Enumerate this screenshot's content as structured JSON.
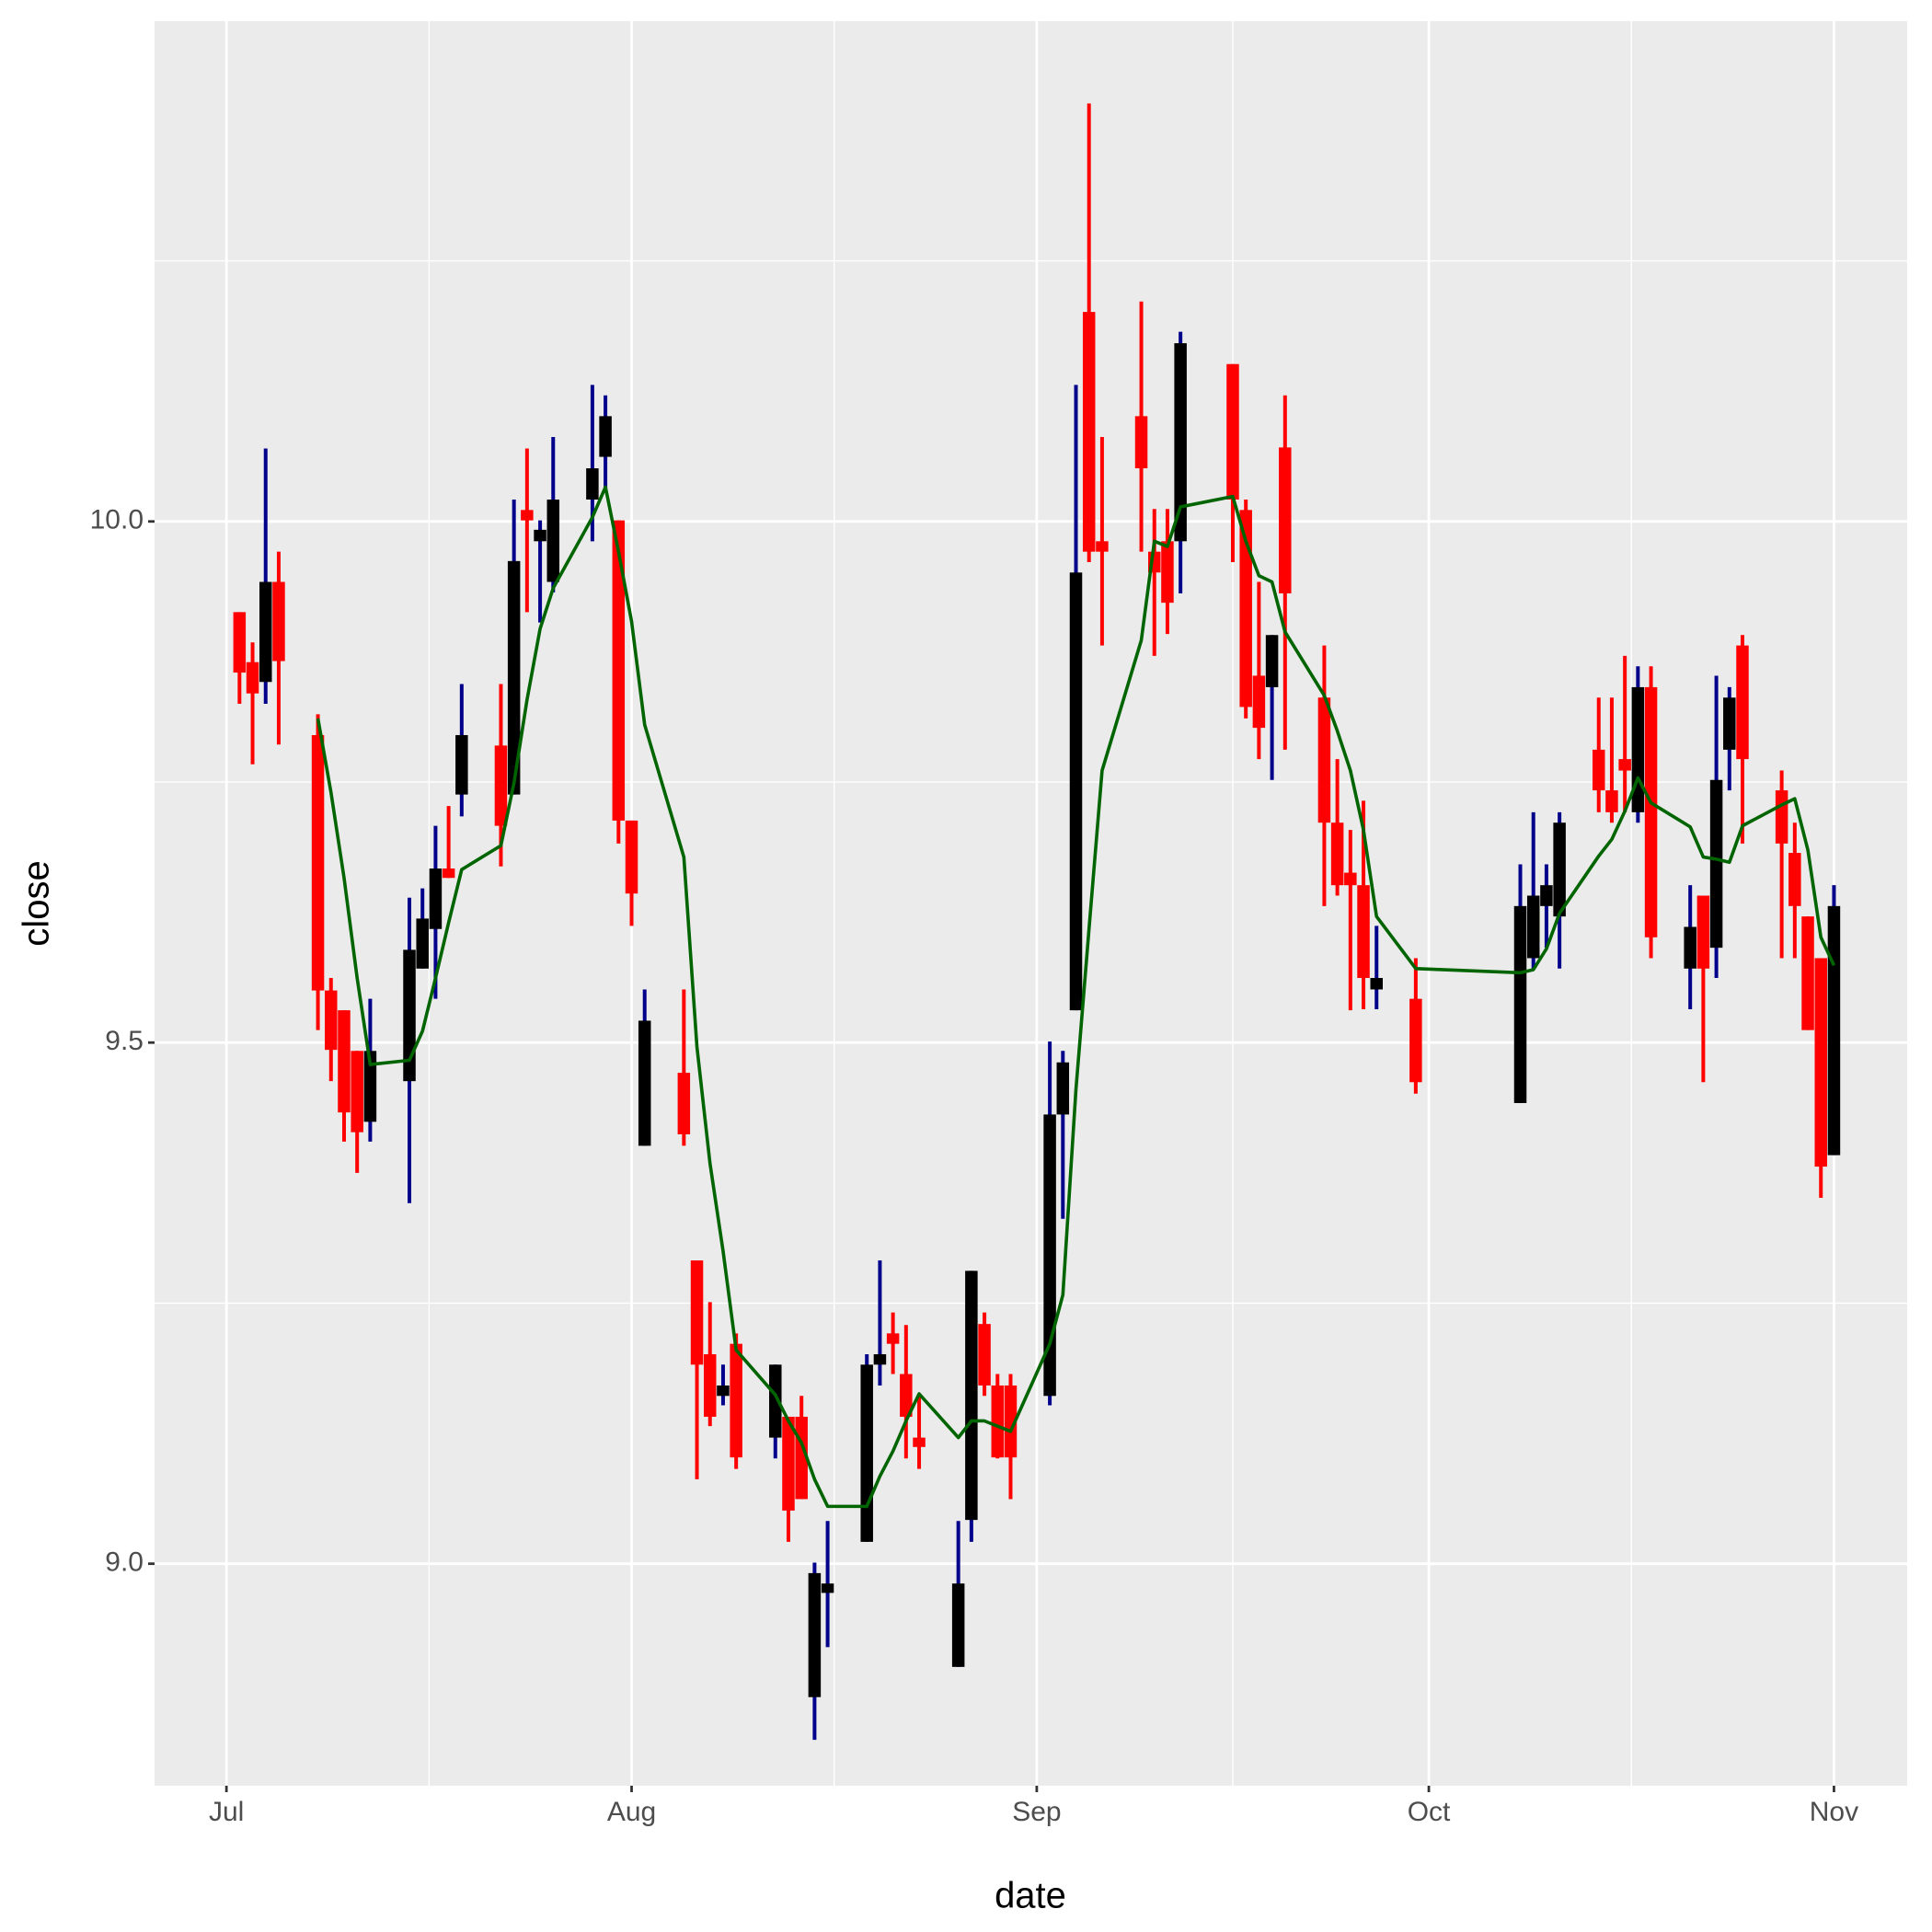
{
  "chart_data": {
    "type": "candlestick",
    "x_label": "date",
    "y_label": "close",
    "x": [
      1,
      2,
      3,
      4,
      7,
      8,
      9,
      10,
      11,
      14,
      15,
      16,
      17,
      18,
      21,
      22,
      23,
      24,
      25,
      28,
      29,
      30,
      31,
      32,
      35,
      36,
      37,
      38,
      39,
      42,
      43,
      44,
      45,
      46,
      49,
      50,
      51,
      52,
      53,
      56,
      57,
      58,
      59,
      60,
      63,
      64,
      65,
      66,
      67,
      70,
      71,
      72,
      73,
      77,
      78,
      79,
      80,
      81,
      84,
      85,
      86,
      87,
      88,
      91,
      99,
      100,
      101,
      102,
      105,
      106,
      107,
      108,
      109,
      112,
      113,
      114,
      115,
      116,
      119,
      120,
      121,
      122,
      123
    ],
    "open": [
      9.913,
      9.865,
      9.846,
      9.942,
      9.795,
      9.55,
      9.531,
      9.492,
      9.424,
      9.463,
      9.571,
      9.609,
      9.667,
      9.738,
      9.785,
      9.738,
      10.011,
      9.981,
      9.942,
      10.021,
      10.062,
      10.001,
      9.713,
      9.401,
      9.471,
      9.291,
      9.201,
      9.161,
      9.211,
      9.121,
      9.141,
      9.141,
      8.872,
      8.972,
      9.021,
      9.191,
      9.221,
      9.182,
      9.121,
      8.901,
      9.042,
      9.23,
      9.171,
      9.171,
      9.161,
      9.431,
      9.531,
      10.201,
      9.981,
      10.101,
      9.971,
      9.981,
      9.981,
      10.151,
      10.011,
      9.852,
      9.841,
      10.071,
      9.831,
      9.711,
      9.663,
      9.651,
      9.551,
      9.542,
      9.442,
      9.581,
      9.631,
      9.621,
      9.781,
      9.742,
      9.772,
      9.721,
      9.841,
      9.571,
      9.641,
      9.591,
      9.781,
      9.881,
      9.742,
      9.682,
      9.621,
      9.581,
      9.392
    ],
    "high": [
      9.913,
      9.884,
      10.07,
      9.971,
      9.815,
      9.562,
      9.531,
      9.492,
      9.542,
      9.639,
      9.648,
      9.708,
      9.727,
      9.844,
      9.844,
      10.021,
      10.07,
      10.001,
      10.081,
      10.131,
      10.121,
      10.001,
      9.713,
      9.551,
      9.551,
      9.291,
      9.251,
      9.191,
      9.221,
      9.191,
      9.141,
      9.161,
      9.001,
      9.041,
      9.201,
      9.291,
      9.241,
      9.229,
      9.161,
      9.041,
      9.281,
      9.241,
      9.182,
      9.182,
      9.501,
      9.492,
      10.131,
      10.401,
      10.081,
      10.211,
      10.012,
      10.012,
      10.182,
      10.151,
      10.021,
      9.942,
      9.891,
      10.121,
      9.881,
      9.772,
      9.704,
      9.732,
      9.612,
      9.581,
      9.671,
      9.721,
      9.671,
      9.721,
      9.831,
      9.831,
      9.871,
      9.861,
      9.861,
      9.651,
      9.641,
      9.852,
      9.841,
      9.891,
      9.761,
      9.711,
      9.621,
      9.581,
      9.651
    ],
    "low": [
      9.825,
      9.767,
      9.825,
      9.786,
      9.512,
      9.463,
      9.405,
      9.375,
      9.405,
      9.346,
      9.571,
      9.542,
      9.658,
      9.717,
      9.669,
      9.738,
      9.913,
      9.903,
      9.932,
      9.981,
      10.032,
      9.691,
      9.612,
      9.401,
      9.401,
      9.081,
      9.132,
      9.152,
      9.091,
      9.101,
      9.021,
      9.062,
      8.831,
      8.92,
      9.021,
      9.171,
      9.182,
      9.101,
      9.091,
      8.901,
      9.021,
      9.161,
      9.101,
      9.062,
      9.152,
      9.331,
      9.531,
      9.961,
      9.881,
      9.971,
      9.871,
      9.892,
      9.931,
      9.961,
      9.811,
      9.772,
      9.752,
      9.781,
      9.631,
      9.641,
      9.531,
      9.532,
      9.532,
      9.451,
      9.442,
      9.571,
      9.591,
      9.571,
      9.721,
      9.711,
      9.721,
      9.711,
      9.581,
      9.532,
      9.462,
      9.562,
      9.742,
      9.691,
      9.581,
      9.581,
      9.512,
      9.351,
      9.392
    ],
    "close": [
      9.855,
      9.835,
      9.942,
      9.866,
      9.55,
      9.493,
      9.433,
      9.414,
      9.492,
      9.589,
      9.619,
      9.667,
      9.658,
      9.795,
      9.708,
      9.962,
      10.001,
      9.992,
      10.021,
      10.051,
      10.101,
      9.713,
      9.643,
      9.521,
      9.412,
      9.191,
      9.141,
      9.171,
      9.102,
      9.191,
      9.051,
      9.062,
      8.991,
      8.981,
      9.191,
      9.201,
      9.211,
      9.141,
      9.112,
      8.981,
      9.281,
      9.171,
      9.102,
      9.102,
      9.431,
      9.481,
      9.951,
      9.971,
      9.971,
      10.051,
      9.951,
      9.922,
      10.171,
      10.021,
      9.822,
      9.802,
      9.891,
      9.931,
      9.711,
      9.651,
      9.651,
      9.562,
      9.562,
      9.462,
      9.631,
      9.641,
      9.651,
      9.711,
      9.742,
      9.721,
      9.761,
      9.841,
      9.601,
      9.611,
      9.571,
      9.752,
      9.831,
      9.772,
      9.691,
      9.631,
      9.512,
      9.381,
      9.631
    ],
    "up_color": "#000000",
    "down_color": "#ff0000",
    "up_wick_color": "#00008b",
    "down_wick_color": "#ff0000",
    "sma": {
      "color": "#006400",
      "values": [
        null,
        null,
        null,
        null,
        9.811,
        9.74,
        9.658,
        9.562,
        9.479,
        9.483,
        9.511,
        9.562,
        9.615,
        9.666,
        9.689,
        9.749,
        9.829,
        9.897,
        9.936,
        10.004,
        10.033,
        9.971,
        9.904,
        9.805,
        9.678,
        9.496,
        9.384,
        9.3,
        9.205,
        9.162,
        9.137,
        9.116,
        9.081,
        9.055,
        9.055,
        9.084,
        9.108,
        9.137,
        9.163,
        9.121,
        9.137,
        9.137,
        9.132,
        9.127,
        9.211,
        9.258,
        9.455,
        9.609,
        9.761,
        9.886,
        9.981,
        9.976,
        10.014,
        10.024,
        9.981,
        9.948,
        9.942,
        9.894,
        9.833,
        9.799,
        9.761,
        9.704,
        9.621,
        9.571,
        9.567,
        9.57,
        9.59,
        9.624,
        9.679,
        9.695,
        9.722,
        9.754,
        9.73,
        9.707,
        9.678,
        9.676,
        9.673,
        9.708,
        9.728,
        9.734,
        9.685,
        9.601,
        9.574
      ]
    },
    "xlim": [
      -5.5,
      128.6
    ],
    "ylim": [
      8.787,
      10.48
    ],
    "xticks": [
      {
        "value": 0,
        "label": "Jul"
      },
      {
        "value": 31,
        "label": "Aug"
      },
      {
        "value": 62,
        "label": "Sep"
      },
      {
        "value": 92,
        "label": "Oct"
      },
      {
        "value": 123,
        "label": "Nov"
      }
    ],
    "x_minor_ticks": [
      15.5,
      46.5,
      77,
      107.5
    ],
    "yticks": [
      {
        "value": 9,
        "label": "9.0"
      },
      9.5,
      {
        "value": 10,
        "label": "10.0"
      }
    ],
    "y_minor_ticks": [
      9.25,
      9.75,
      10.25
    ],
    "grid": true
  }
}
